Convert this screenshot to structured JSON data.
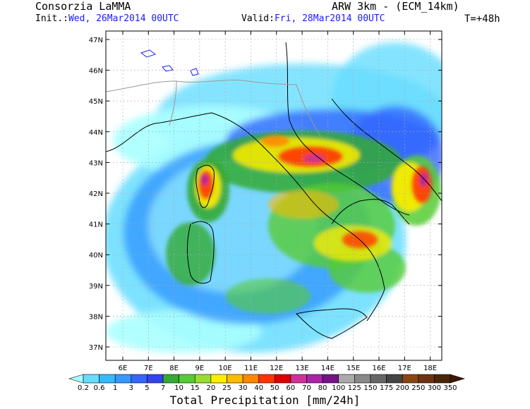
{
  "header": {
    "source": "Consorzia LaMMA",
    "model": "ARW 3km - (ECM_14km)",
    "init_label": "Init.:",
    "init_value": "Wed, 26Mar2014 00UTC",
    "valid_label": "Valid:",
    "valid_value": "Fri, 28Mar2014 00UTC",
    "step": "T=+48h"
  },
  "map": {
    "lat_labels": [
      "47N",
      "46N",
      "45N",
      "44N",
      "43N",
      "42N",
      "41N",
      "40N",
      "39N",
      "38N",
      "37N"
    ],
    "lon_labels": [
      "6E",
      "7E",
      "8E",
      "9E",
      "10E",
      "11E",
      "12E",
      "13E",
      "14E",
      "15E",
      "16E",
      "17E",
      "18E"
    ]
  },
  "colorbar": {
    "title": "Total Precipitation [mm/24h]",
    "levels": [
      "0.2",
      "0.6",
      "1",
      "3",
      "5",
      "7",
      "10",
      "15",
      "20",
      "25",
      "30",
      "40",
      "50",
      "60",
      "70",
      "80",
      "100",
      "125",
      "150",
      "175",
      "200",
      "250",
      "300",
      "350"
    ],
    "colors": [
      "#aaffff",
      "#66ddff",
      "#33bbff",
      "#3399ff",
      "#3366ff",
      "#3344ee",
      "#33aa33",
      "#55cc33",
      "#99dd33",
      "#ffee00",
      "#ffbb00",
      "#ff8800",
      "#ff3300",
      "#dd0000",
      "#cc3399",
      "#aa22aa",
      "#771188",
      "#aaaaaa",
      "#888888",
      "#666666",
      "#444444",
      "#8b4513",
      "#6b3410",
      "#4a2508",
      "#3a1a05"
    ]
  }
}
